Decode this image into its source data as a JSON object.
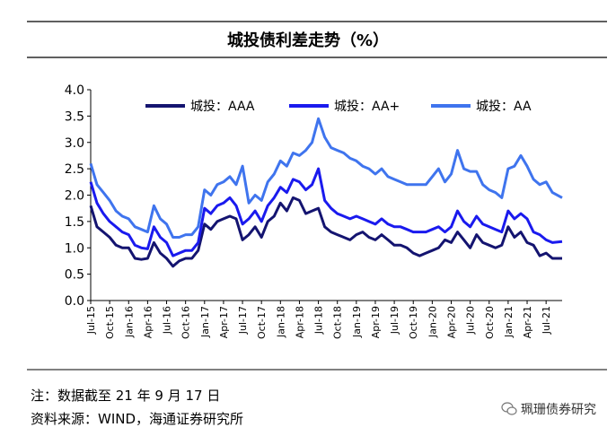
{
  "chart_data": {
    "type": "line",
    "title": "城投债利差走势（%）",
    "ylim": [
      0,
      4
    ],
    "yticks": [
      "0.0",
      "0.5",
      "1.0",
      "1.5",
      "2.0",
      "2.5",
      "3.0",
      "3.5",
      "4.0"
    ],
    "xrange": [
      "2015-07",
      "2021-09-17"
    ],
    "xticks": [
      "Jul-15",
      "Oct-15",
      "Jan-16",
      "Apr-16",
      "Jul-16",
      "Oct-16",
      "Jan-17",
      "Apr-17",
      "Jul-17",
      "Oct-17",
      "Jan-18",
      "Apr-18",
      "Jul-18",
      "Oct-18",
      "Jan-19",
      "Apr-19",
      "Jul-19",
      "Oct-19",
      "Jan-20",
      "Apr-20",
      "Jul-20",
      "Oct-20",
      "Jan-21",
      "Apr-21",
      "Jul-21"
    ],
    "legend_position": "top",
    "grid": false,
    "series": [
      {
        "name": "城投：AAA",
        "color": "#141470",
        "points": [
          [
            "2015-07",
            1.8
          ],
          [
            "2015-08",
            1.4
          ],
          [
            "2015-09",
            1.3
          ],
          [
            "2015-10",
            1.2
          ],
          [
            "2015-11",
            1.05
          ],
          [
            "2015-12",
            1.0
          ],
          [
            "2016-01",
            1.0
          ],
          [
            "2016-02",
            0.8
          ],
          [
            "2016-03",
            0.78
          ],
          [
            "2016-04",
            0.8
          ],
          [
            "2016-05",
            1.1
          ],
          [
            "2016-06",
            0.9
          ],
          [
            "2016-07",
            0.8
          ],
          [
            "2016-08",
            0.65
          ],
          [
            "2016-09",
            0.75
          ],
          [
            "2016-10",
            0.8
          ],
          [
            "2016-11",
            0.8
          ],
          [
            "2016-12",
            0.95
          ],
          [
            "2017-01",
            1.45
          ],
          [
            "2017-02",
            1.35
          ],
          [
            "2017-03",
            1.5
          ],
          [
            "2017-04",
            1.55
          ],
          [
            "2017-05",
            1.6
          ],
          [
            "2017-06",
            1.55
          ],
          [
            "2017-07",
            1.15
          ],
          [
            "2017-08",
            1.25
          ],
          [
            "2017-09",
            1.4
          ],
          [
            "2017-10",
            1.2
          ],
          [
            "2017-11",
            1.5
          ],
          [
            "2017-12",
            1.6
          ],
          [
            "2018-01",
            1.85
          ],
          [
            "2018-02",
            1.7
          ],
          [
            "2018-03",
            1.95
          ],
          [
            "2018-04",
            1.9
          ],
          [
            "2018-05",
            1.65
          ],
          [
            "2018-06",
            1.7
          ],
          [
            "2018-07",
            1.75
          ],
          [
            "2018-08",
            1.4
          ],
          [
            "2018-09",
            1.3
          ],
          [
            "2018-10",
            1.25
          ],
          [
            "2018-11",
            1.2
          ],
          [
            "2018-12",
            1.15
          ],
          [
            "2019-01",
            1.25
          ],
          [
            "2019-02",
            1.3
          ],
          [
            "2019-03",
            1.2
          ],
          [
            "2019-04",
            1.15
          ],
          [
            "2019-05",
            1.25
          ],
          [
            "2019-06",
            1.15
          ],
          [
            "2019-07",
            1.05
          ],
          [
            "2019-08",
            1.05
          ],
          [
            "2019-09",
            1.0
          ],
          [
            "2019-10",
            0.9
          ],
          [
            "2019-11",
            0.85
          ],
          [
            "2019-12",
            0.9
          ],
          [
            "2020-01",
            0.95
          ],
          [
            "2020-02",
            1.0
          ],
          [
            "2020-03",
            1.15
          ],
          [
            "2020-04",
            1.1
          ],
          [
            "2020-05",
            1.3
          ],
          [
            "2020-06",
            1.15
          ],
          [
            "2020-07",
            1.0
          ],
          [
            "2020-08",
            1.25
          ],
          [
            "2020-09",
            1.1
          ],
          [
            "2020-10",
            1.05
          ],
          [
            "2020-11",
            1.0
          ],
          [
            "2020-12",
            1.05
          ],
          [
            "2021-01",
            1.4
          ],
          [
            "2021-02",
            1.2
          ],
          [
            "2021-03",
            1.3
          ],
          [
            "2021-04",
            1.1
          ],
          [
            "2021-05",
            1.05
          ],
          [
            "2021-06",
            0.85
          ],
          [
            "2021-07",
            0.9
          ],
          [
            "2021-08",
            0.8
          ],
          [
            "2021-09-17",
            0.8
          ]
        ]
      },
      {
        "name": "城投：AA+",
        "color": "#1a1aee",
        "points": [
          [
            "2015-07",
            2.25
          ],
          [
            "2015-08",
            1.85
          ],
          [
            "2015-09",
            1.65
          ],
          [
            "2015-10",
            1.5
          ],
          [
            "2015-11",
            1.4
          ],
          [
            "2015-12",
            1.3
          ],
          [
            "2016-01",
            1.25
          ],
          [
            "2016-02",
            1.05
          ],
          [
            "2016-03",
            1.0
          ],
          [
            "2016-04",
            0.98
          ],
          [
            "2016-05",
            1.4
          ],
          [
            "2016-06",
            1.2
          ],
          [
            "2016-07",
            1.1
          ],
          [
            "2016-08",
            0.85
          ],
          [
            "2016-09",
            0.9
          ],
          [
            "2016-10",
            0.95
          ],
          [
            "2016-11",
            0.95
          ],
          [
            "2016-12",
            1.1
          ],
          [
            "2017-01",
            1.75
          ],
          [
            "2017-02",
            1.65
          ],
          [
            "2017-03",
            1.8
          ],
          [
            "2017-04",
            1.85
          ],
          [
            "2017-05",
            1.95
          ],
          [
            "2017-06",
            1.8
          ],
          [
            "2017-07",
            1.45
          ],
          [
            "2017-08",
            1.55
          ],
          [
            "2017-09",
            1.7
          ],
          [
            "2017-10",
            1.5
          ],
          [
            "2017-11",
            1.8
          ],
          [
            "2017-12",
            1.95
          ],
          [
            "2018-01",
            2.15
          ],
          [
            "2018-02",
            2.05
          ],
          [
            "2018-03",
            2.3
          ],
          [
            "2018-04",
            2.25
          ],
          [
            "2018-05",
            2.1
          ],
          [
            "2018-06",
            2.2
          ],
          [
            "2018-07",
            2.5
          ],
          [
            "2018-08",
            1.9
          ],
          [
            "2018-09",
            1.75
          ],
          [
            "2018-10",
            1.65
          ],
          [
            "2018-11",
            1.6
          ],
          [
            "2018-12",
            1.55
          ],
          [
            "2019-01",
            1.6
          ],
          [
            "2019-02",
            1.55
          ],
          [
            "2019-03",
            1.5
          ],
          [
            "2019-04",
            1.45
          ],
          [
            "2019-05",
            1.55
          ],
          [
            "2019-06",
            1.45
          ],
          [
            "2019-07",
            1.4
          ],
          [
            "2019-08",
            1.4
          ],
          [
            "2019-09",
            1.35
          ],
          [
            "2019-10",
            1.3
          ],
          [
            "2019-11",
            1.3
          ],
          [
            "2019-12",
            1.3
          ],
          [
            "2020-01",
            1.35
          ],
          [
            "2020-02",
            1.4
          ],
          [
            "2020-03",
            1.3
          ],
          [
            "2020-04",
            1.4
          ],
          [
            "2020-05",
            1.7
          ],
          [
            "2020-06",
            1.5
          ],
          [
            "2020-07",
            1.4
          ],
          [
            "2020-08",
            1.6
          ],
          [
            "2020-09",
            1.45
          ],
          [
            "2020-10",
            1.4
          ],
          [
            "2020-11",
            1.35
          ],
          [
            "2020-12",
            1.3
          ],
          [
            "2021-01",
            1.7
          ],
          [
            "2021-02",
            1.55
          ],
          [
            "2021-03",
            1.65
          ],
          [
            "2021-04",
            1.55
          ],
          [
            "2021-05",
            1.3
          ],
          [
            "2021-06",
            1.25
          ],
          [
            "2021-07",
            1.15
          ],
          [
            "2021-08",
            1.1
          ],
          [
            "2021-09-17",
            1.12
          ]
        ]
      },
      {
        "name": "城投：AA",
        "color": "#3f74ee",
        "points": [
          [
            "2015-07",
            2.6
          ],
          [
            "2015-08",
            2.2
          ],
          [
            "2015-09",
            2.05
          ],
          [
            "2015-10",
            1.9
          ],
          [
            "2015-11",
            1.7
          ],
          [
            "2015-12",
            1.6
          ],
          [
            "2016-01",
            1.55
          ],
          [
            "2016-02",
            1.4
          ],
          [
            "2016-03",
            1.35
          ],
          [
            "2016-04",
            1.3
          ],
          [
            "2016-05",
            1.8
          ],
          [
            "2016-06",
            1.55
          ],
          [
            "2016-07",
            1.45
          ],
          [
            "2016-08",
            1.2
          ],
          [
            "2016-09",
            1.2
          ],
          [
            "2016-10",
            1.25
          ],
          [
            "2016-11",
            1.25
          ],
          [
            "2016-12",
            1.4
          ],
          [
            "2017-01",
            2.1
          ],
          [
            "2017-02",
            2.0
          ],
          [
            "2017-03",
            2.2
          ],
          [
            "2017-04",
            2.25
          ],
          [
            "2017-05",
            2.35
          ],
          [
            "2017-06",
            2.2
          ],
          [
            "2017-07",
            2.55
          ],
          [
            "2017-08",
            1.85
          ],
          [
            "2017-09",
            2.0
          ],
          [
            "2017-10",
            1.9
          ],
          [
            "2017-11",
            2.25
          ],
          [
            "2017-12",
            2.4
          ],
          [
            "2018-01",
            2.65
          ],
          [
            "2018-02",
            2.55
          ],
          [
            "2018-03",
            2.8
          ],
          [
            "2018-04",
            2.75
          ],
          [
            "2018-05",
            2.85
          ],
          [
            "2018-06",
            3.0
          ],
          [
            "2018-07",
            3.45
          ],
          [
            "2018-08",
            3.1
          ],
          [
            "2018-09",
            2.9
          ],
          [
            "2018-10",
            2.85
          ],
          [
            "2018-11",
            2.8
          ],
          [
            "2018-12",
            2.7
          ],
          [
            "2019-01",
            2.65
          ],
          [
            "2019-02",
            2.55
          ],
          [
            "2019-03",
            2.5
          ],
          [
            "2019-04",
            2.4
          ],
          [
            "2019-05",
            2.5
          ],
          [
            "2019-06",
            2.35
          ],
          [
            "2019-07",
            2.3
          ],
          [
            "2019-08",
            2.25
          ],
          [
            "2019-09",
            2.2
          ],
          [
            "2019-10",
            2.2
          ],
          [
            "2019-11",
            2.2
          ],
          [
            "2019-12",
            2.2
          ],
          [
            "2020-01",
            2.35
          ],
          [
            "2020-02",
            2.5
          ],
          [
            "2020-03",
            2.25
          ],
          [
            "2020-04",
            2.4
          ],
          [
            "2020-05",
            2.85
          ],
          [
            "2020-06",
            2.5
          ],
          [
            "2020-07",
            2.45
          ],
          [
            "2020-08",
            2.45
          ],
          [
            "2020-09",
            2.2
          ],
          [
            "2020-10",
            2.1
          ],
          [
            "2020-11",
            2.05
          ],
          [
            "2020-12",
            1.95
          ],
          [
            "2021-01",
            2.5
          ],
          [
            "2021-02",
            2.55
          ],
          [
            "2021-03",
            2.75
          ],
          [
            "2021-04",
            2.55
          ],
          [
            "2021-05",
            2.3
          ],
          [
            "2021-06",
            2.2
          ],
          [
            "2021-07",
            2.25
          ],
          [
            "2021-08",
            2.05
          ],
          [
            "2021-09-17",
            1.95
          ]
        ]
      }
    ]
  },
  "notes": {
    "note": "注：数据截至 21 年 9 月 17 日",
    "source": "资料来源：WIND，海通证券研究所"
  },
  "watermark": {
    "text": "珮珊债券研究",
    "icon": "wechat-icon"
  }
}
